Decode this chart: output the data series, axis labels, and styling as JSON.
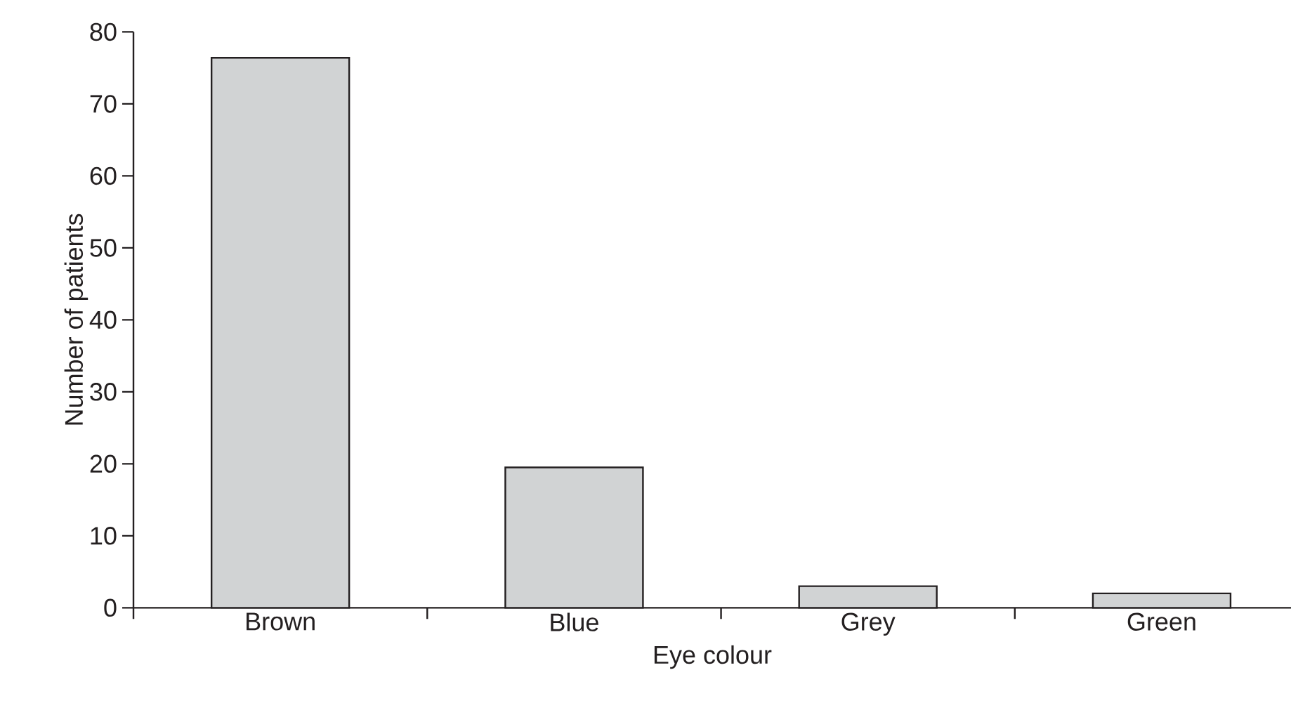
{
  "chart_data": {
    "type": "bar",
    "xlabel": "Eye colour",
    "ylabel": "Number of patients",
    "categories": [
      "Brown",
      "Blue",
      "Grey",
      "Green"
    ],
    "values": [
      76.4,
      19.5,
      3,
      2
    ],
    "color": "#d1d3d4",
    "ylim": [
      0,
      80
    ],
    "yticks": [
      0,
      10,
      20,
      30,
      40,
      50,
      60,
      70,
      80
    ]
  }
}
